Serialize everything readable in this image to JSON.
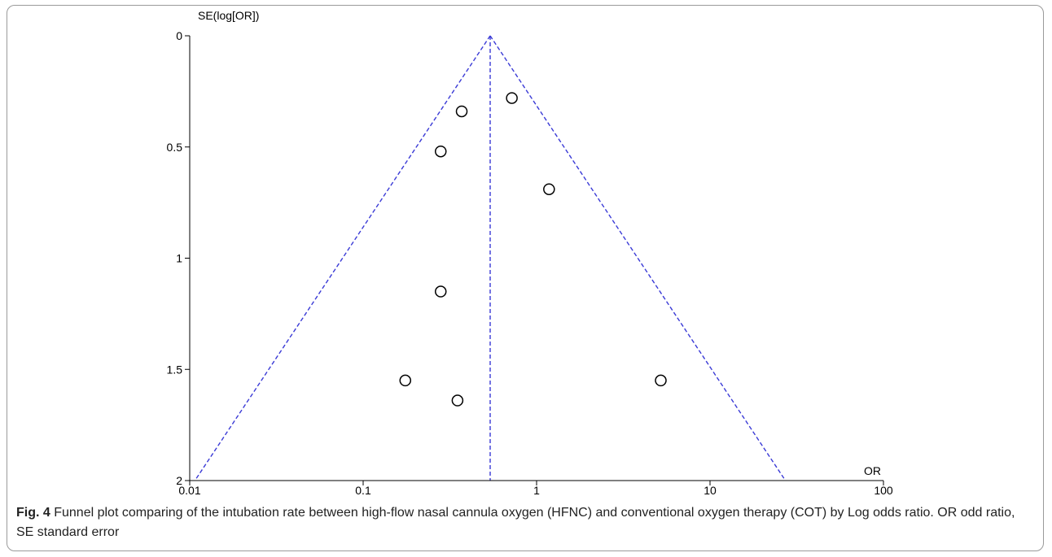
{
  "chart_data": {
    "type": "scatter",
    "subtype": "funnel",
    "x_scale": "log",
    "xlabel": "OR",
    "ylabel": "SE(log[OR])",
    "xlim": [
      0.01,
      100
    ],
    "ylim": [
      0,
      2
    ],
    "y_inverted": true,
    "x_ticks": [
      "0.01",
      "0.1",
      "1",
      "10",
      "100"
    ],
    "y_ticks": [
      "0",
      "0.5",
      "1",
      "1.5",
      "2"
    ],
    "pooled_or": 0.54,
    "funnel_base_se": 2,
    "points": [
      {
        "x": 0.72,
        "y": 0.28
      },
      {
        "x": 0.37,
        "y": 0.34
      },
      {
        "x": 0.28,
        "y": 0.52
      },
      {
        "x": 1.18,
        "y": 0.69
      },
      {
        "x": 0.28,
        "y": 1.15
      },
      {
        "x": 0.175,
        "y": 1.55
      },
      {
        "x": 0.35,
        "y": 1.64
      },
      {
        "x": 5.2,
        "y": 1.55
      }
    ],
    "colors": {
      "funnel_line": "#3a3ad6",
      "marker": "#000000",
      "axis": "#000000"
    }
  },
  "caption": {
    "label": "Fig. 4",
    "text": " Funnel plot comparing of the intubation rate between high-flow nasal cannula oxygen (HFNC) and conventional oxygen therapy (COT) by Log odds ratio. OR odd ratio, SE standard error"
  }
}
